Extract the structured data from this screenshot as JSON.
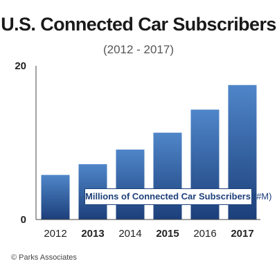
{
  "chart_data": {
    "type": "bar",
    "title": "U.S. Connected Car Subscribers",
    "subtitle": "(2012 - 2017)",
    "categories": [
      "2012",
      "2013",
      "2014",
      "2015",
      "2016",
      "2017"
    ],
    "bold_categories": [
      "2013",
      "2015",
      "2017"
    ],
    "series": [
      {
        "name": "Millions of Connected Car Subscribers",
        "unit": "(#M)",
        "values": [
          5.8,
          7.2,
          9.1,
          11.3,
          14.3,
          17.5
        ]
      }
    ],
    "ylim": [
      0,
      20
    ],
    "yticks": [
      0,
      20
    ],
    "xlabel": "",
    "ylabel": "",
    "grid": false,
    "legend_position": "inside-bottom-right",
    "colors": {
      "bar_top": "#4f86c9",
      "bar_bottom": "#1c3f7a",
      "axis": "#444444",
      "legend_border": "#1c3f7a"
    }
  },
  "footer": {
    "copyright": "© Parks Associates"
  }
}
